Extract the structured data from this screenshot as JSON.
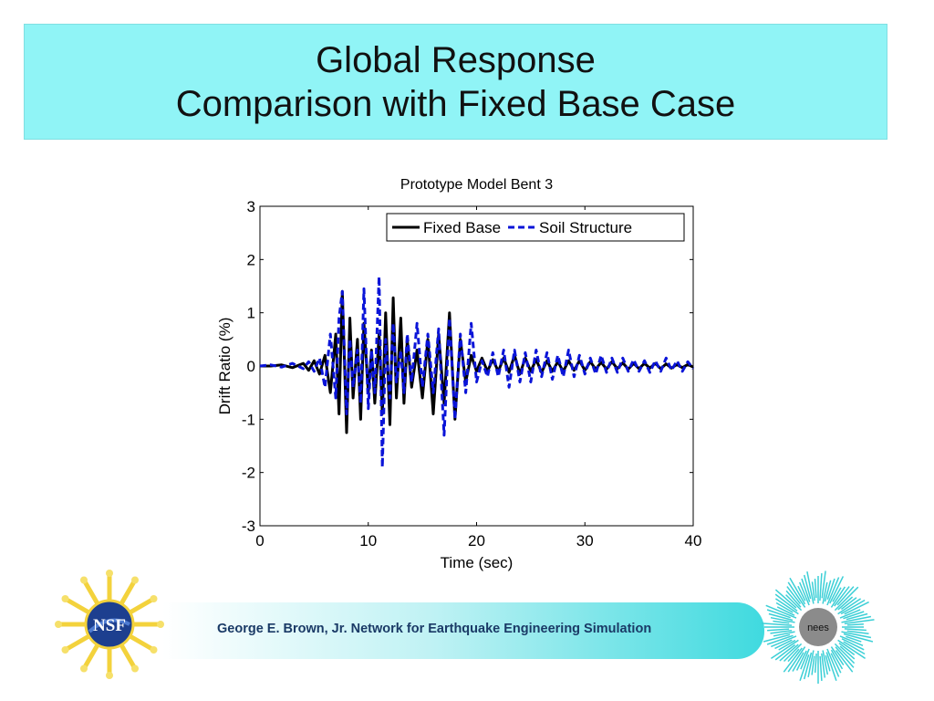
{
  "slide": {
    "title_line1": "Global Response",
    "title_line2": "Comparison with Fixed Base Case",
    "band_color": "#90f4f6"
  },
  "footer": {
    "text": "George E. Brown, Jr. Network for Earthquake Engineering Simulation",
    "left_logo_text": "NSF",
    "right_logo_text": "nees"
  },
  "chart_data": {
    "type": "line",
    "title": "Prototype Model Bent 3",
    "xlabel": "Time (sec)",
    "ylabel": "Drift Ratio (%)",
    "xlim": [
      0,
      40
    ],
    "ylim": [
      -3,
      3
    ],
    "xticks": [
      "0",
      "10",
      "20",
      "30",
      "40"
    ],
    "yticks": [
      "3",
      "2",
      "1",
      "0",
      "-1",
      "-2",
      "-3"
    ],
    "grid": false,
    "legend_position": "top-right",
    "x": [
      0,
      1,
      2,
      3,
      4,
      4.5,
      5,
      5.5,
      6,
      6.5,
      7,
      7.3,
      7.6,
      8,
      8.3,
      8.6,
      9,
      9.3,
      9.6,
      10,
      10.3,
      10.6,
      11,
      11.3,
      11.6,
      12,
      12.3,
      12.6,
      13,
      13.3,
      13.6,
      14,
      14.5,
      15,
      15.5,
      16,
      16.5,
      17,
      17.5,
      18,
      18.5,
      19,
      19.5,
      20,
      20.5,
      21,
      21.5,
      22,
      22.5,
      23,
      23.5,
      24,
      24.5,
      25,
      25.5,
      26,
      26.5,
      27,
      27.5,
      28,
      28.5,
      29,
      29.5,
      30,
      30.5,
      31,
      31.5,
      32,
      32.5,
      33,
      33.5,
      34,
      34.5,
      35,
      35.5,
      36,
      36.5,
      37,
      37.5,
      38,
      38.5,
      39,
      39.5,
      40
    ],
    "series": [
      {
        "name": "Fixed Base",
        "color": "#000000",
        "style": "solid",
        "values": [
          0,
          0,
          0.02,
          -0.03,
          0.05,
          -0.08,
          0.1,
          -0.15,
          0.2,
          -0.5,
          0.6,
          -0.9,
          1.4,
          -1.25,
          0.9,
          -0.6,
          0.5,
          -1.0,
          0.8,
          -0.5,
          0.3,
          -0.7,
          0.6,
          -0.9,
          1.0,
          -1.1,
          1.28,
          -0.6,
          0.9,
          -0.7,
          0.5,
          -0.4,
          0.3,
          -0.6,
          0.5,
          -0.9,
          0.6,
          -0.7,
          1.0,
          -1.0,
          0.5,
          -0.3,
          0.2,
          -0.1,
          0.15,
          -0.1,
          0.12,
          -0.1,
          0.15,
          -0.12,
          0.2,
          -0.15,
          0.15,
          -0.1,
          0.12,
          -0.12,
          0.1,
          -0.1,
          0.08,
          -0.1,
          0.1,
          -0.08,
          0.1,
          -0.08,
          0.08,
          -0.06,
          0.07,
          -0.06,
          0.08,
          -0.05,
          0.06,
          -0.06,
          0.05,
          -0.05,
          0.05,
          -0.04,
          0.05,
          -0.05,
          0.04,
          -0.04,
          0.03,
          -0.03,
          0.03,
          -0.02
        ]
      },
      {
        "name": "Soil Structure",
        "color": "#0a14d8",
        "style": "dashed",
        "values": [
          0,
          0.02,
          -0.02,
          0.05,
          -0.05,
          0.08,
          -0.1,
          0.15,
          -0.4,
          0.6,
          -0.6,
          0.9,
          1.4,
          -0.9,
          0.5,
          -0.4,
          0.3,
          -0.7,
          1.45,
          -0.8,
          0.3,
          -0.5,
          1.68,
          -1.9,
          0.5,
          -0.6,
          0.8,
          -0.3,
          0.3,
          -0.5,
          0.6,
          -0.3,
          0.8,
          -0.4,
          0.6,
          -0.5,
          0.7,
          -1.3,
          0.9,
          -1.0,
          0.6,
          -0.5,
          0.8,
          -0.3,
          0.1,
          -0.2,
          0.25,
          -0.2,
          0.3,
          -0.4,
          0.3,
          -0.3,
          0.25,
          -0.3,
          0.3,
          -0.2,
          0.25,
          -0.25,
          0.2,
          -0.2,
          0.3,
          -0.2,
          0.2,
          -0.15,
          0.15,
          -0.15,
          0.2,
          -0.12,
          0.15,
          -0.12,
          0.15,
          -0.1,
          0.12,
          -0.1,
          0.1,
          -0.12,
          0.1,
          -0.1,
          0.15,
          -0.08,
          0.1,
          -0.1,
          0.08,
          -0.05
        ]
      }
    ]
  }
}
